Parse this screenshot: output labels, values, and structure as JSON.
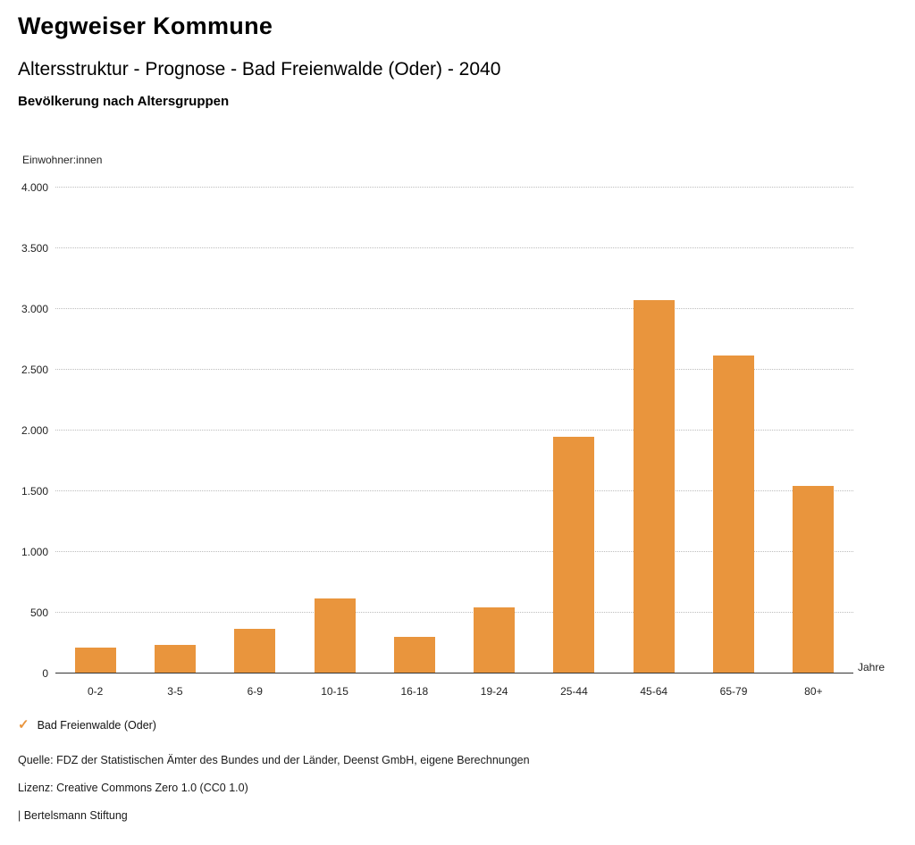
{
  "header": {
    "title": "Wegweiser Kommune",
    "subtitle": "Altersstruktur - Prognose - Bad Freienwalde (Oder) - 2040",
    "chart_title": "Bevölkerung nach Altersgruppen"
  },
  "chart_data": {
    "type": "bar",
    "title": "Bevölkerung nach Altersgruppen",
    "ylabel": "Einwohner:innen",
    "xlabel": "Jahre",
    "categories": [
      "0-2",
      "3-5",
      "6-9",
      "10-15",
      "16-18",
      "19-24",
      "25-44",
      "45-64",
      "65-79",
      "80+"
    ],
    "values": [
      215,
      235,
      365,
      620,
      305,
      545,
      1945,
      3070,
      2620,
      1545
    ],
    "ylim": [
      0,
      4000
    ],
    "ytick_step": 500,
    "ytick_labels": [
      "0",
      "500",
      "1.000",
      "1.500",
      "2.000",
      "2.500",
      "3.000",
      "3.500",
      "4.000"
    ],
    "grid": "horizontal-dotted",
    "bar_color": "#E9953D",
    "legend": {
      "position": "bottom-left",
      "entries": [
        "Bad Freienwalde (Oder)"
      ],
      "check_color": "#E9953D"
    }
  },
  "footer": {
    "source": "Quelle: FDZ der Statistischen Ämter des Bundes und der Länder, Deenst GmbH, eigene Berechnungen",
    "license": "Lizenz: Creative Commons Zero 1.0 (CC0 1.0)",
    "attribution": "| Bertelsmann Stiftung"
  }
}
